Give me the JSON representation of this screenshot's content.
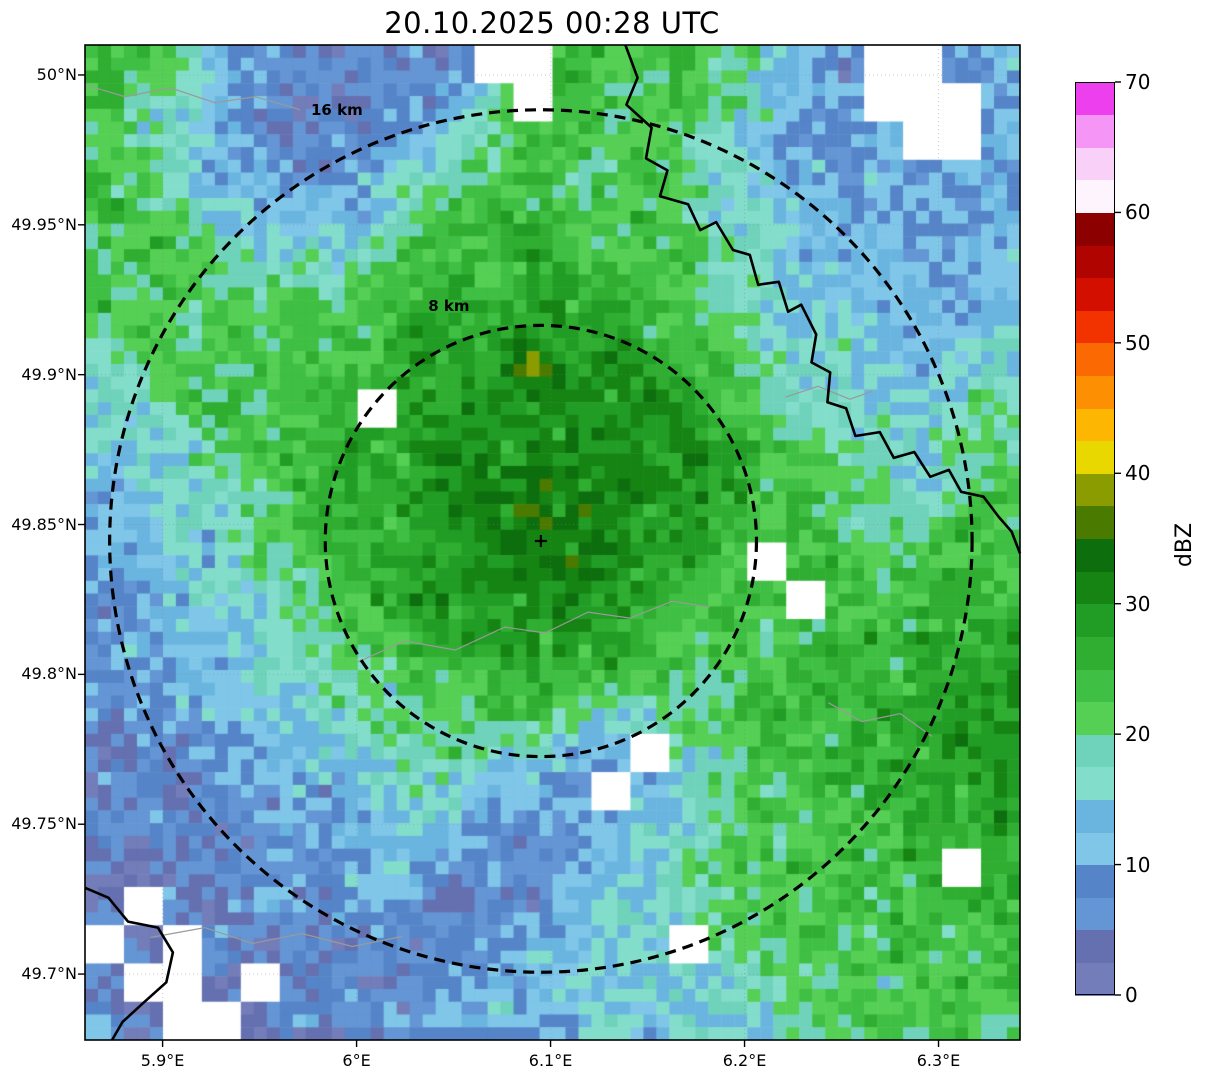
{
  "title": "20.10.2025 00:28 UTC",
  "chart_data": {
    "type": "heatmap",
    "title": "20.10.2025 00:28 UTC",
    "value_units": "dBZ",
    "lon_range": [
      5.86,
      6.342
    ],
    "lat_range": [
      49.678,
      50.01
    ],
    "lon_ticks": {
      "values": [
        5.9,
        6.0,
        6.1,
        6.2,
        6.3
      ],
      "labels": [
        "5.9°E",
        "6°E",
        "6.1°E",
        "6.2°E",
        "6.3°E"
      ]
    },
    "lat_ticks": {
      "values": [
        50.0,
        49.95,
        49.9,
        49.85,
        49.8,
        49.75,
        49.7
      ],
      "labels": [
        "50°N",
        "49.95°N",
        "49.9°N",
        "49.85°N",
        "49.8°N",
        "49.75°N",
        "49.7°N"
      ]
    },
    "colorbar": {
      "min": 0,
      "max": 70,
      "step": 2.5,
      "label": "dBZ",
      "tick_values": [
        0,
        10,
        20,
        30,
        40,
        50,
        60,
        70
      ],
      "tick_labels": [
        "0",
        "10",
        "20",
        "30",
        "40",
        "50",
        "60",
        "70"
      ],
      "colors": [
        "#737db9",
        "#6470b0",
        "#6495d4",
        "#5585c8",
        "#7fc6e9",
        "#6ab5e0",
        "#83ddcb",
        "#6fd2bb",
        "#55cf54",
        "#3fbf43",
        "#2fae31",
        "#219d25",
        "#158413",
        "#0d6e0e",
        "#4a7a00",
        "#8a9c00",
        "#e8d800",
        "#fdb702",
        "#fd9002",
        "#fb6a02",
        "#f23300",
        "#d31000",
        "#b00400",
        "#8c0000",
        "#fdf4fd",
        "#f9d0f8",
        "#f595f5",
        "#ee3fee"
      ]
    },
    "radar_center": {
      "lat": 49.8445,
      "lon": 6.095,
      "marker": "+"
    },
    "range_rings_km": [
      {
        "radius_km": 16,
        "label": "16 km"
      },
      {
        "radius_km": 8,
        "label": "8 km"
      }
    ],
    "no_data_value": -1,
    "grid_rows": 26,
    "grid_cols": 24,
    "grid_dbz": [
      [
        24,
        24,
        20,
        12,
        8,
        8,
        4,
        8,
        4,
        8,
        -1,
        -1,
        24,
        20,
        24,
        24,
        20,
        16,
        12,
        8,
        -1,
        -1,
        8,
        12
      ],
      [
        24,
        20,
        16,
        12,
        8,
        4,
        4,
        8,
        8,
        12,
        20,
        -1,
        24,
        24,
        20,
        24,
        20,
        16,
        12,
        8,
        -1,
        -1,
        -1,
        8
      ],
      [
        20,
        20,
        16,
        12,
        8,
        4,
        8,
        8,
        12,
        16,
        20,
        24,
        24,
        20,
        24,
        20,
        16,
        12,
        8,
        8,
        12,
        -1,
        -1,
        12
      ],
      [
        24,
        20,
        16,
        12,
        12,
        8,
        8,
        12,
        16,
        20,
        24,
        24,
        20,
        24,
        24,
        20,
        16,
        12,
        12,
        8,
        12,
        8,
        12,
        8
      ],
      [
        24,
        24,
        20,
        16,
        12,
        12,
        12,
        16,
        20,
        24,
        24,
        24,
        24,
        20,
        24,
        20,
        16,
        16,
        12,
        12,
        8,
        12,
        8,
        12
      ],
      [
        20,
        24,
        24,
        20,
        16,
        16,
        16,
        20,
        24,
        24,
        24,
        28,
        24,
        24,
        20,
        24,
        20,
        16,
        12,
        12,
        12,
        8,
        12,
        12
      ],
      [
        24,
        20,
        24,
        20,
        20,
        20,
        20,
        24,
        24,
        28,
        24,
        28,
        28,
        24,
        24,
        20,
        20,
        16,
        16,
        12,
        12,
        12,
        8,
        12
      ],
      [
        20,
        24,
        20,
        24,
        20,
        24,
        24,
        24,
        28,
        24,
        28,
        28,
        28,
        28,
        24,
        24,
        20,
        16,
        16,
        16,
        12,
        12,
        12,
        16
      ],
      [
        16,
        20,
        24,
        20,
        24,
        24,
        24,
        24,
        28,
        28,
        28,
        38,
        28,
        31,
        28,
        24,
        24,
        20,
        16,
        16,
        16,
        12,
        16,
        16
      ],
      [
        16,
        16,
        20,
        24,
        20,
        24,
        24,
        -1,
        28,
        28,
        31,
        28,
        31,
        28,
        31,
        28,
        24,
        20,
        20,
        16,
        16,
        16,
        16,
        20
      ],
      [
        16,
        16,
        16,
        20,
        24,
        24,
        28,
        24,
        28,
        31,
        28,
        31,
        31,
        31,
        28,
        31,
        28,
        24,
        20,
        20,
        16,
        16,
        20,
        20
      ],
      [
        12,
        16,
        16,
        20,
        20,
        24,
        24,
        28,
        28,
        31,
        31,
        33,
        31,
        33,
        31,
        28,
        28,
        24,
        24,
        20,
        20,
        16,
        20,
        24
      ],
      [
        12,
        12,
        16,
        16,
        20,
        24,
        28,
        24,
        28,
        31,
        31,
        33,
        31,
        31,
        28,
        31,
        24,
        24,
        24,
        20,
        20,
        20,
        24,
        24
      ],
      [
        12,
        12,
        16,
        16,
        20,
        20,
        24,
        28,
        28,
        28,
        31,
        31,
        33,
        31,
        28,
        28,
        24,
        -1,
        24,
        24,
        20,
        24,
        24,
        24
      ],
      [
        8,
        12,
        12,
        16,
        16,
        20,
        24,
        24,
        28,
        28,
        28,
        31,
        31,
        28,
        28,
        24,
        24,
        24,
        -1,
        24,
        24,
        24,
        28,
        24
      ],
      [
        8,
        12,
        12,
        12,
        16,
        20,
        20,
        24,
        24,
        28,
        28,
        28,
        28,
        28,
        24,
        24,
        24,
        20,
        24,
        24,
        24,
        28,
        24,
        28
      ],
      [
        8,
        8,
        12,
        12,
        16,
        16,
        20,
        20,
        24,
        24,
        24,
        28,
        24,
        24,
        24,
        20,
        20,
        24,
        24,
        28,
        24,
        24,
        28,
        28
      ],
      [
        8,
        8,
        8,
        12,
        12,
        16,
        16,
        20,
        20,
        20,
        24,
        24,
        20,
        16,
        16,
        20,
        24,
        24,
        24,
        24,
        28,
        28,
        31,
        28
      ],
      [
        4,
        8,
        8,
        8,
        12,
        12,
        16,
        16,
        20,
        20,
        16,
        16,
        12,
        12,
        -1,
        16,
        20,
        24,
        24,
        28,
        24,
        28,
        28,
        31
      ],
      [
        4,
        8,
        4,
        8,
        8,
        12,
        12,
        16,
        16,
        16,
        12,
        12,
        8,
        -1,
        12,
        16,
        20,
        20,
        24,
        24,
        28,
        24,
        28,
        28
      ],
      [
        8,
        4,
        8,
        4,
        8,
        8,
        12,
        12,
        16,
        12,
        8,
        8,
        8,
        12,
        16,
        16,
        20,
        24,
        20,
        24,
        24,
        28,
        24,
        28
      ],
      [
        4,
        4,
        4,
        8,
        8,
        8,
        8,
        12,
        12,
        8,
        8,
        4,
        8,
        12,
        16,
        20,
        20,
        20,
        24,
        24,
        24,
        24,
        -1,
        24
      ],
      [
        4,
        -1,
        4,
        4,
        8,
        8,
        8,
        8,
        8,
        4,
        8,
        8,
        12,
        16,
        16,
        16,
        20,
        24,
        20,
        24,
        20,
        24,
        24,
        28
      ],
      [
        -1,
        4,
        -1,
        8,
        4,
        8,
        4,
        8,
        4,
        8,
        8,
        12,
        12,
        16,
        16,
        -1,
        20,
        20,
        24,
        20,
        24,
        24,
        20,
        24
      ],
      [
        4,
        -1,
        -1,
        4,
        -1,
        4,
        8,
        4,
        8,
        8,
        12,
        12,
        16,
        12,
        16,
        16,
        16,
        20,
        20,
        24,
        20,
        24,
        24,
        24
      ],
      [
        8,
        4,
        -1,
        -1,
        4,
        8,
        4,
        8,
        8,
        12,
        12,
        8,
        12,
        16,
        12,
        16,
        16,
        16,
        20,
        20,
        24,
        20,
        24,
        20
      ]
    ],
    "map_lines": {
      "borders": [
        [
          [
            0.578,
            0.0
          ],
          [
            0.591,
            0.033
          ],
          [
            0.579,
            0.06
          ],
          [
            0.606,
            0.083
          ],
          [
            0.6,
            0.114
          ],
          [
            0.623,
            0.126
          ],
          [
            0.615,
            0.152
          ],
          [
            0.645,
            0.16
          ],
          [
            0.658,
            0.186
          ],
          [
            0.675,
            0.178
          ],
          [
            0.693,
            0.206
          ],
          [
            0.711,
            0.211
          ],
          [
            0.72,
            0.241
          ],
          [
            0.742,
            0.238
          ],
          [
            0.752,
            0.268
          ],
          [
            0.766,
            0.261
          ],
          [
            0.782,
            0.291
          ],
          [
            0.777,
            0.319
          ],
          [
            0.797,
            0.329
          ],
          [
            0.794,
            0.359
          ],
          [
            0.814,
            0.365
          ],
          [
            0.824,
            0.393
          ],
          [
            0.85,
            0.389
          ],
          [
            0.865,
            0.415
          ],
          [
            0.887,
            0.409
          ],
          [
            0.904,
            0.434
          ],
          [
            0.924,
            0.427
          ],
          [
            0.937,
            0.449
          ],
          [
            0.961,
            0.454
          ],
          [
            0.977,
            0.474
          ],
          [
            0.991,
            0.489
          ],
          [
            1.0,
            0.511
          ]
        ],
        [
          [
            0.0,
            0.847
          ],
          [
            0.025,
            0.857
          ],
          [
            0.046,
            0.881
          ],
          [
            0.078,
            0.887
          ],
          [
            0.094,
            0.912
          ],
          [
            0.087,
            0.942
          ],
          [
            0.062,
            0.963
          ],
          [
            0.04,
            0.982
          ],
          [
            0.029,
            1.0
          ]
        ]
      ],
      "rivers": [
        [
          [
            0.0,
            0.04
          ],
          [
            0.043,
            0.052
          ],
          [
            0.091,
            0.043
          ],
          [
            0.139,
            0.058
          ],
          [
            0.182,
            0.052
          ],
          [
            0.23,
            0.065
          ]
        ],
        [
          [
            0.292,
            0.62
          ],
          [
            0.342,
            0.599
          ],
          [
            0.396,
            0.608
          ],
          [
            0.449,
            0.585
          ],
          [
            0.492,
            0.591
          ],
          [
            0.538,
            0.57
          ],
          [
            0.583,
            0.576
          ],
          [
            0.628,
            0.559
          ],
          [
            0.668,
            0.565
          ]
        ],
        [
          [
            0.07,
            0.897
          ],
          [
            0.128,
            0.887
          ],
          [
            0.179,
            0.903
          ],
          [
            0.232,
            0.893
          ],
          [
            0.286,
            0.906
          ],
          [
            0.339,
            0.896
          ]
        ],
        [
          [
            0.749,
            0.354
          ],
          [
            0.784,
            0.343
          ],
          [
            0.818,
            0.356
          ],
          [
            0.842,
            0.348
          ]
        ],
        [
          [
            0.795,
            0.661
          ],
          [
            0.831,
            0.68
          ],
          [
            0.872,
            0.672
          ],
          [
            0.906,
            0.695
          ]
        ]
      ]
    }
  }
}
